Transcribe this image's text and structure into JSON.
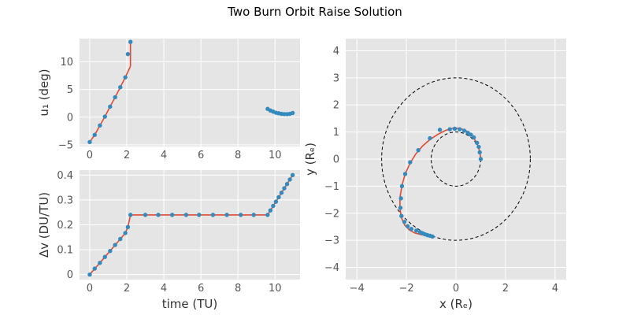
{
  "figure": {
    "title": "Two Burn Orbit Raise Solution",
    "colors": {
      "background": "#E5E5E5",
      "grid": "#FFFFFF",
      "line": "#E24A33",
      "marker": "#348ABD",
      "circle": "#000000",
      "tick_text": "#555555"
    }
  },
  "chart_data": [
    {
      "id": "control",
      "type": "line",
      "ylabel": "u₁ (deg)",
      "xlabel": "",
      "xlim": [
        -0.55,
        11.35
      ],
      "ylim": [
        -5.3,
        14.2
      ],
      "xticks": [
        0,
        2,
        4,
        6,
        8,
        10
      ],
      "yticks": [
        -5,
        0,
        5,
        10
      ],
      "show_xtick_labels": true,
      "grid": true,
      "series": [
        {
          "style": "line",
          "segments": [
            {
              "x": [
                0,
                0.27,
                0.55,
                0.82,
                1.1,
                1.37,
                1.65,
                1.92,
                2.2
              ],
              "y": [
                -4.5,
                -3.2,
                -1.5,
                0.1,
                1.9,
                3.6,
                5.4,
                7.2,
                9.2
              ]
            },
            {
              "x": [
                2.2,
                2.2
              ],
              "y": [
                9.2,
                13.6
              ]
            },
            {
              "x": [
                9.6,
                9.75,
                9.9,
                10.05,
                10.2,
                10.35,
                10.5,
                10.65,
                10.8,
                10.95
              ],
              "y": [
                1.5,
                1.2,
                1.0,
                0.8,
                0.7,
                0.6,
                0.55,
                0.55,
                0.6,
                0.75
              ]
            }
          ]
        },
        {
          "style": "markers",
          "points": {
            "x": [
              0,
              0.27,
              0.55,
              0.82,
              1.1,
              1.37,
              1.65,
              1.92,
              2.06,
              2.2,
              9.6,
              9.75,
              9.9,
              10.05,
              10.2,
              10.35,
              10.5,
              10.65,
              10.8,
              10.95
            ],
            "y": [
              -4.5,
              -3.2,
              -1.5,
              0.1,
              1.9,
              3.6,
              5.4,
              7.2,
              11.4,
              13.6,
              1.5,
              1.2,
              1.0,
              0.8,
              0.7,
              0.6,
              0.55,
              0.55,
              0.6,
              0.75
            ]
          }
        }
      ]
    },
    {
      "id": "deltav",
      "type": "line",
      "ylabel": "Δv (DU/TU)",
      "xlabel": "time (TU)",
      "xlim": [
        -0.55,
        11.35
      ],
      "ylim": [
        -0.02,
        0.42
      ],
      "xticks": [
        0,
        2,
        4,
        6,
        8,
        10
      ],
      "yticks": [
        0.0,
        0.1,
        0.2,
        0.3,
        0.4
      ],
      "grid": true,
      "series": [
        {
          "style": "line",
          "segments": [
            {
              "x": [
                0,
                0.27,
                0.55,
                0.82,
                1.1,
                1.37,
                1.65,
                1.92,
                2.06,
                2.2,
                9.6,
                10.95
              ],
              "y": [
                0.0,
                0.024,
                0.047,
                0.071,
                0.095,
                0.119,
                0.143,
                0.167,
                0.191,
                0.24,
                0.24,
                0.4
              ]
            }
          ]
        },
        {
          "style": "markers",
          "points": {
            "x": [
              0,
              0.27,
              0.55,
              0.82,
              1.1,
              1.37,
              1.65,
              1.92,
              2.06,
              2.2,
              3.0,
              3.7,
              4.45,
              5.2,
              5.9,
              6.65,
              7.4,
              8.15,
              8.85,
              9.6,
              9.75,
              9.9,
              10.05,
              10.2,
              10.35,
              10.5,
              10.65,
              10.8,
              10.95
            ],
            "y": [
              0.0,
              0.024,
              0.047,
              0.071,
              0.095,
              0.119,
              0.143,
              0.167,
              0.191,
              0.24,
              0.24,
              0.24,
              0.24,
              0.24,
              0.24,
              0.24,
              0.24,
              0.24,
              0.24,
              0.24,
              0.258,
              0.276,
              0.293,
              0.311,
              0.329,
              0.347,
              0.364,
              0.382,
              0.4
            ]
          }
        }
      ]
    },
    {
      "id": "trajectory",
      "type": "line",
      "ylabel": "y (Rₑ)",
      "xlabel": "x (Rₑ)",
      "xlim": [
        -4.45,
        4.45
      ],
      "ylim": [
        -4.45,
        4.45
      ],
      "xticks": [
        -4,
        -2,
        0,
        2,
        4
      ],
      "yticks": [
        -4,
        -3,
        -2,
        -1,
        0,
        1,
        2,
        3,
        4
      ],
      "grid": true,
      "reference_circles": [
        {
          "radius": 1,
          "style": "dashed"
        },
        {
          "radius": 3,
          "style": "dashed"
        }
      ],
      "series": [
        {
          "style": "line",
          "segments": [
            {
              "x": [
                1.0,
                0.96,
                0.85,
                0.66,
                0.42,
                0.15,
                -0.12,
                -0.42,
                -0.72,
                -1.05,
                -1.35,
                -1.62,
                -1.85,
                -2.05,
                -2.18,
                -2.26,
                -2.26,
                -2.2,
                -2.07,
                -1.88,
                -1.66,
                -1.42,
                -1.16,
                -0.92
              ],
              "y": [
                0.0,
                0.28,
                0.58,
                0.86,
                1.04,
                1.14,
                1.14,
                1.06,
                0.92,
                0.72,
                0.48,
                0.19,
                -0.15,
                -0.54,
                -0.98,
                -1.42,
                -1.84,
                -2.17,
                -2.44,
                -2.62,
                -2.73,
                -2.79,
                -2.83,
                -2.85
              ]
            }
          ]
        },
        {
          "style": "markers",
          "points": {
            "x": [
              1.0,
              0.96,
              0.92,
              0.85,
              0.72,
              0.6,
              0.48,
              0.33,
              0.15,
              -0.05,
              -0.25,
              -0.65,
              -1.05,
              -1.52,
              -1.85,
              -2.05,
              -2.18,
              -2.22,
              -2.24,
              -2.2,
              -2.08,
              -1.95,
              -1.8,
              -1.6,
              -1.45,
              -1.35,
              -1.25,
              -1.15,
              -1.05,
              -0.95
            ],
            "y": [
              0.0,
              0.25,
              0.45,
              0.6,
              0.8,
              0.9,
              0.97,
              1.05,
              1.1,
              1.12,
              1.1,
              1.08,
              0.77,
              0.33,
              -0.12,
              -0.55,
              -1.0,
              -1.45,
              -1.8,
              -2.1,
              -2.32,
              -2.48,
              -2.58,
              -2.64,
              -2.7,
              -2.74,
              -2.78,
              -2.81,
              -2.83,
              -2.86
            ]
          }
        }
      ]
    }
  ]
}
